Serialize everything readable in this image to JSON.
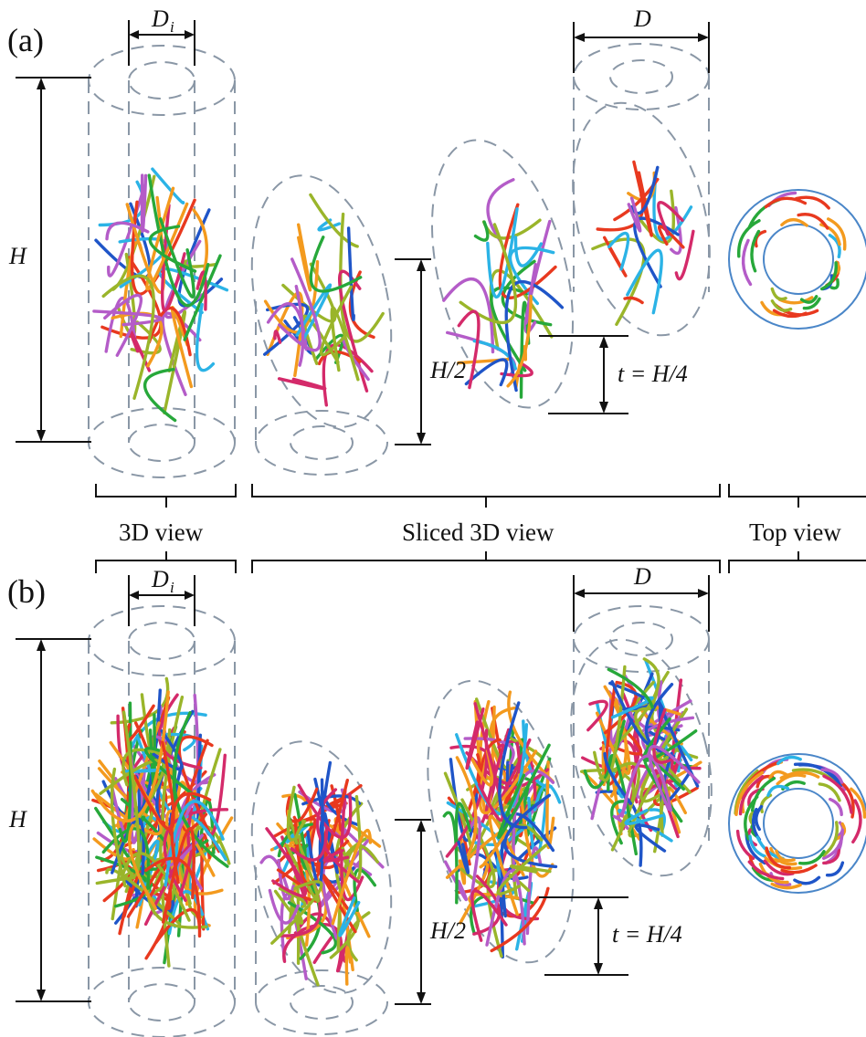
{
  "panels": [
    {
      "label": "(a)",
      "dims": {
        "Di": "D",
        "Di_sub": "i",
        "D": "D",
        "H": "H",
        "H_half": "H/2",
        "t": "t = H/4"
      },
      "fiber_density": "sparse"
    },
    {
      "label": "(b)",
      "dims": {
        "Di": "D",
        "Di_sub": "i",
        "D": "D",
        "H": "H",
        "H_half": "H/2",
        "t": "t = H/4"
      },
      "fiber_density": "dense"
    }
  ],
  "view_labels": {
    "three_d": "3D view",
    "sliced": "Sliced 3D view",
    "top": "Top view"
  },
  "fiber_colors": [
    "#e8391f",
    "#1f55c8",
    "#27a83a",
    "#b45cc8",
    "#2bb3e6",
    "#f39a1e",
    "#9ab52a",
    "#d42a6a"
  ],
  "outline_color": "#8a97a6"
}
